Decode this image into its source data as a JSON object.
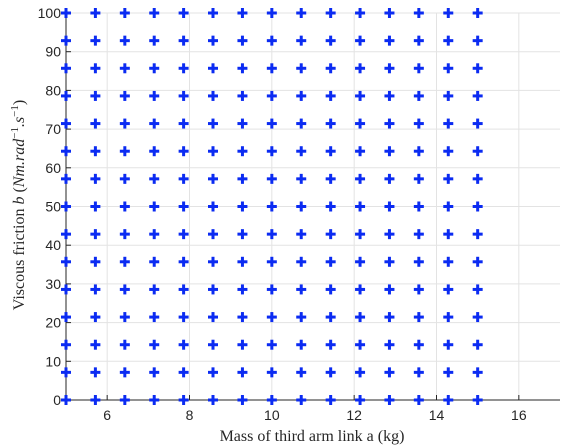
{
  "chart_data": {
    "type": "scatter",
    "xlabel": "Mass of third arm link a (kg)",
    "ylabel": "Viscous friction b (Nm.rad⁻¹.s⁻¹)",
    "ylabel_parts": {
      "prefix": "Viscous friction ",
      "var": "b",
      "open": " (",
      "unit": "Nm.rad",
      "sup1": "−1",
      "mid": ".s",
      "sup2": "−1",
      "close": ")"
    },
    "xlim": [
      5,
      17
    ],
    "ylim": [
      0,
      100
    ],
    "xticks": [
      6,
      8,
      10,
      12,
      14,
      16
    ],
    "yticks": [
      0,
      10,
      20,
      30,
      40,
      50,
      60,
      70,
      80,
      90,
      100
    ],
    "grid": true,
    "marker": "plus",
    "color": "#0b2bf2",
    "x": [
      5,
      5.714,
      6.429,
      7.143,
      7.857,
      8.571,
      9.286,
      10,
      10.714,
      11.429,
      12.143,
      12.857,
      13.571,
      14.286,
      15
    ],
    "y": [
      0,
      7.143,
      14.286,
      21.429,
      28.571,
      35.714,
      42.857,
      50,
      57.143,
      64.286,
      71.429,
      78.571,
      85.714,
      92.857,
      100
    ]
  }
}
